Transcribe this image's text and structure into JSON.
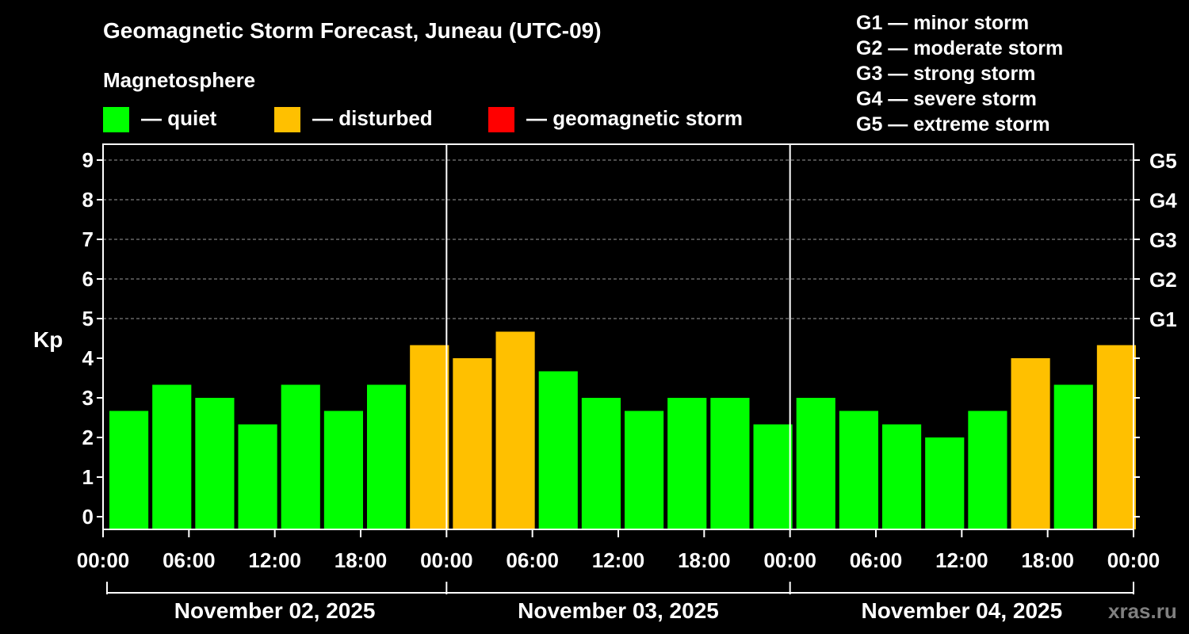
{
  "title": "Geomagnetic Storm Forecast, Juneau (UTC-09)",
  "legend": {
    "heading": "Magnetosphere",
    "items": [
      {
        "label": "— quiet",
        "color": "#00ff00"
      },
      {
        "label": "— disturbed",
        "color": "#ffc000"
      },
      {
        "label": "— geomagnetic storm",
        "color": "#ff0000"
      }
    ]
  },
  "storm_scale": [
    "G1 — minor storm",
    "G2 — moderate storm",
    "G3 — strong storm",
    "G4 — severe storm",
    "G5 — extreme storm"
  ],
  "watermark": "xras.ru",
  "chart_data": {
    "type": "bar",
    "title": "Geomagnetic Storm Forecast, Juneau (UTC-09)",
    "ylabel": "Kp",
    "ylim": [
      0,
      9
    ],
    "y_ticks": [
      "0",
      "1",
      "2",
      "3",
      "4",
      "5",
      "6",
      "7",
      "8",
      "9"
    ],
    "right_ticks": [
      {
        "value": 5,
        "label": "G1"
      },
      {
        "value": 6,
        "label": "G2"
      },
      {
        "value": 7,
        "label": "G3"
      },
      {
        "value": 8,
        "label": "G4"
      },
      {
        "value": 9,
        "label": "G5"
      }
    ],
    "x_ticks": [
      "00:00",
      "06:00",
      "12:00",
      "18:00",
      "00:00",
      "06:00",
      "12:00",
      "18:00",
      "00:00",
      "06:00",
      "12:00",
      "18:00",
      "00:00"
    ],
    "days": [
      "November 02, 2025",
      "November 03, 2025",
      "November 04, 2025"
    ],
    "interval_hours": 3,
    "values": [
      2.67,
      3.33,
      3.0,
      2.33,
      3.33,
      2.67,
      3.33,
      4.33,
      4.0,
      4.67,
      3.67,
      3.0,
      2.67,
      3.0,
      3.0,
      2.33,
      3.0,
      2.67,
      2.33,
      2.0,
      2.67,
      4.0,
      3.33,
      4.33
    ],
    "colors": {
      "quiet": "#00ff00",
      "disturbed": "#ffc000",
      "storm": "#ff0000"
    },
    "grid": true,
    "grid_lines_at": [
      5,
      6,
      7,
      8,
      9
    ],
    "legend_position": "top"
  }
}
